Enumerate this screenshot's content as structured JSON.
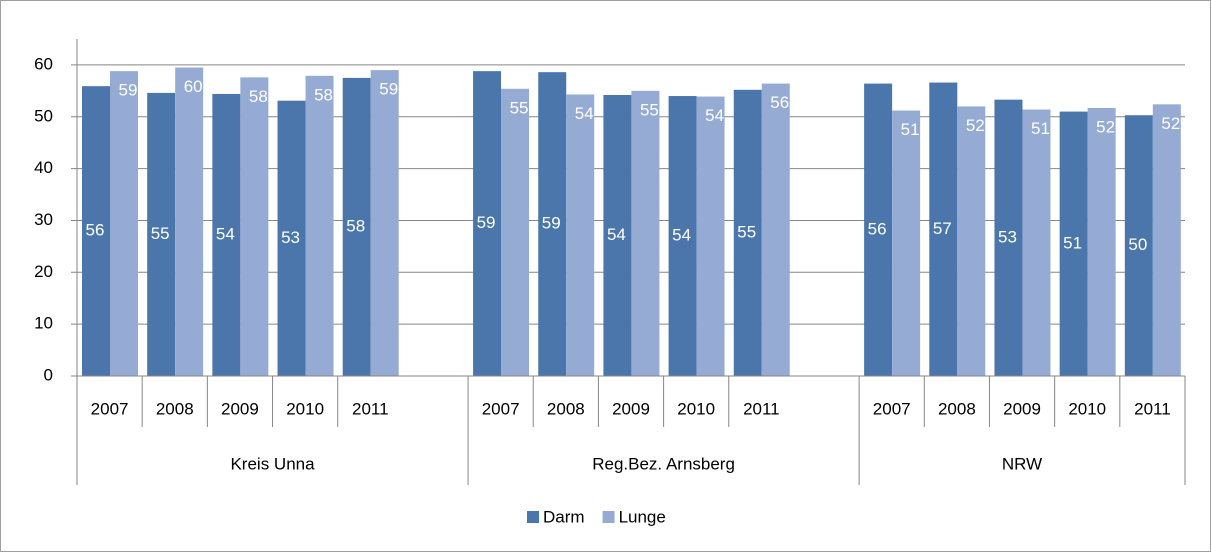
{
  "chart_data": {
    "type": "bar",
    "groups": [
      "Kreis Unna",
      "Reg.Bez. Arnsberg",
      "NRW"
    ],
    "categories": [
      "2007",
      "2008",
      "2009",
      "2010",
      "2011",
      null,
      "2007",
      "2008",
      "2009",
      "2010",
      "2011",
      null,
      "2007",
      "2008",
      "2009",
      "2010",
      "2011"
    ],
    "series": [
      {
        "name": "Darm",
        "color": "#4a76ab",
        "values": [
          55.9,
          54.6,
          54.4,
          53.1,
          57.5,
          null,
          58.8,
          58.6,
          54.2,
          54.0,
          55.2,
          null,
          56.4,
          56.6,
          53.3,
          51.0,
          50.3
        ],
        "value_labels": [
          "56",
          "55",
          "54",
          "53",
          "58",
          null,
          "59",
          "59",
          "54",
          "54",
          "55",
          null,
          "56",
          "57",
          "53",
          "51",
          "50"
        ]
      },
      {
        "name": "Lunge",
        "color": "#95abd4",
        "values": [
          58.8,
          59.5,
          57.6,
          57.9,
          59.0,
          null,
          55.4,
          54.3,
          55.0,
          53.9,
          56.4,
          null,
          51.2,
          52.0,
          51.4,
          51.7,
          52.4
        ],
        "value_labels": [
          "59",
          "60",
          "58",
          "58",
          "59",
          null,
          "55",
          "54",
          "55",
          "54",
          "56",
          null,
          "51",
          "52",
          "51",
          "52",
          "52"
        ]
      }
    ],
    "ylim": [
      0,
      65
    ],
    "yticks": [
      0,
      10,
      20,
      30,
      40,
      50,
      60
    ],
    "grid": true,
    "legend": "bottom"
  }
}
